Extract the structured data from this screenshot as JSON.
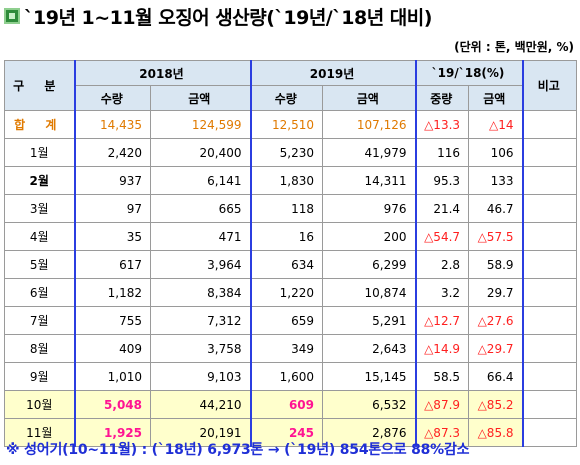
{
  "title": "`19년 1~11월 오징어 생산량(`19년/`18년 대비)",
  "unit_note": "(단위 : 톤, 백만원, %)",
  "headers": {
    "category": "구 분",
    "y2018": "2018년",
    "y2019": "2019년",
    "ratio": "`19/`18(%)",
    "remarks": "비고",
    "qty": "수량",
    "amount": "금액",
    "qty_ratio": "중량",
    "amount_ratio": "금액"
  },
  "total": {
    "label": "합 계",
    "q2018": "14,435",
    "a2018": "124,599",
    "q2019": "12,510",
    "a2019": "107,126",
    "rq": "△13.3",
    "ra": "△14"
  },
  "rows": [
    {
      "label": "1월",
      "q2018": "2,420",
      "a2018": "20,400",
      "q2019": "5,230",
      "a2019": "41,979",
      "rq": "116",
      "ra": "106"
    },
    {
      "label": "2월",
      "q2018": "937",
      "a2018": "6,141",
      "q2019": "1,830",
      "a2019": "14,311",
      "rq": "95.3",
      "ra": "133"
    },
    {
      "label": "3월",
      "q2018": "97",
      "a2018": "665",
      "q2019": "118",
      "a2019": "976",
      "rq": "21.4",
      "ra": "46.7"
    },
    {
      "label": "4월",
      "q2018": "35",
      "a2018": "471",
      "q2019": "16",
      "a2019": "200",
      "rq": "△54.7",
      "ra": "△57.5"
    },
    {
      "label": "5월",
      "q2018": "617",
      "a2018": "3,964",
      "q2019": "634",
      "a2019": "6,299",
      "rq": "2.8",
      "ra": "58.9"
    },
    {
      "label": "6월",
      "q2018": "1,182",
      "a2018": "8,384",
      "q2019": "1,220",
      "a2019": "10,874",
      "rq": "3.2",
      "ra": "29.7"
    },
    {
      "label": "7월",
      "q2018": "755",
      "a2018": "7,312",
      "q2019": "659",
      "a2019": "5,291",
      "rq": "△12.7",
      "ra": "△27.6"
    },
    {
      "label": "8월",
      "q2018": "409",
      "a2018": "3,758",
      "q2019": "349",
      "a2019": "2,643",
      "rq": "△14.9",
      "ra": "△29.7"
    },
    {
      "label": "9월",
      "q2018": "1,010",
      "a2018": "9,103",
      "q2019": "1,600",
      "a2019": "15,145",
      "rq": "58.5",
      "ra": "66.4"
    },
    {
      "label": "10월",
      "q2018": "5,048",
      "a2018": "44,210",
      "q2019": "609",
      "a2019": "6,532",
      "rq": "△87.9",
      "ra": "△85.2"
    },
    {
      "label": "11월",
      "q2018": "1,925",
      "a2018": "20,191",
      "q2019": "245",
      "a2019": "2,876",
      "rq": "△87.3",
      "ra": "△85.8"
    }
  ],
  "footnote": "※ 성어기(10~11월) : (`18년) 6,973톤 → (`19년) 854톤으로 88%감소",
  "colors": {
    "header_bg": "#d9e6f2",
    "total_text": "#e07a00",
    "negative_text": "#ff2020",
    "highlight_bg": "#ffffcc",
    "emphasis_text": "#ff1493",
    "footnote_text": "#1f2fd6",
    "group_border": "#2b3ee0"
  }
}
